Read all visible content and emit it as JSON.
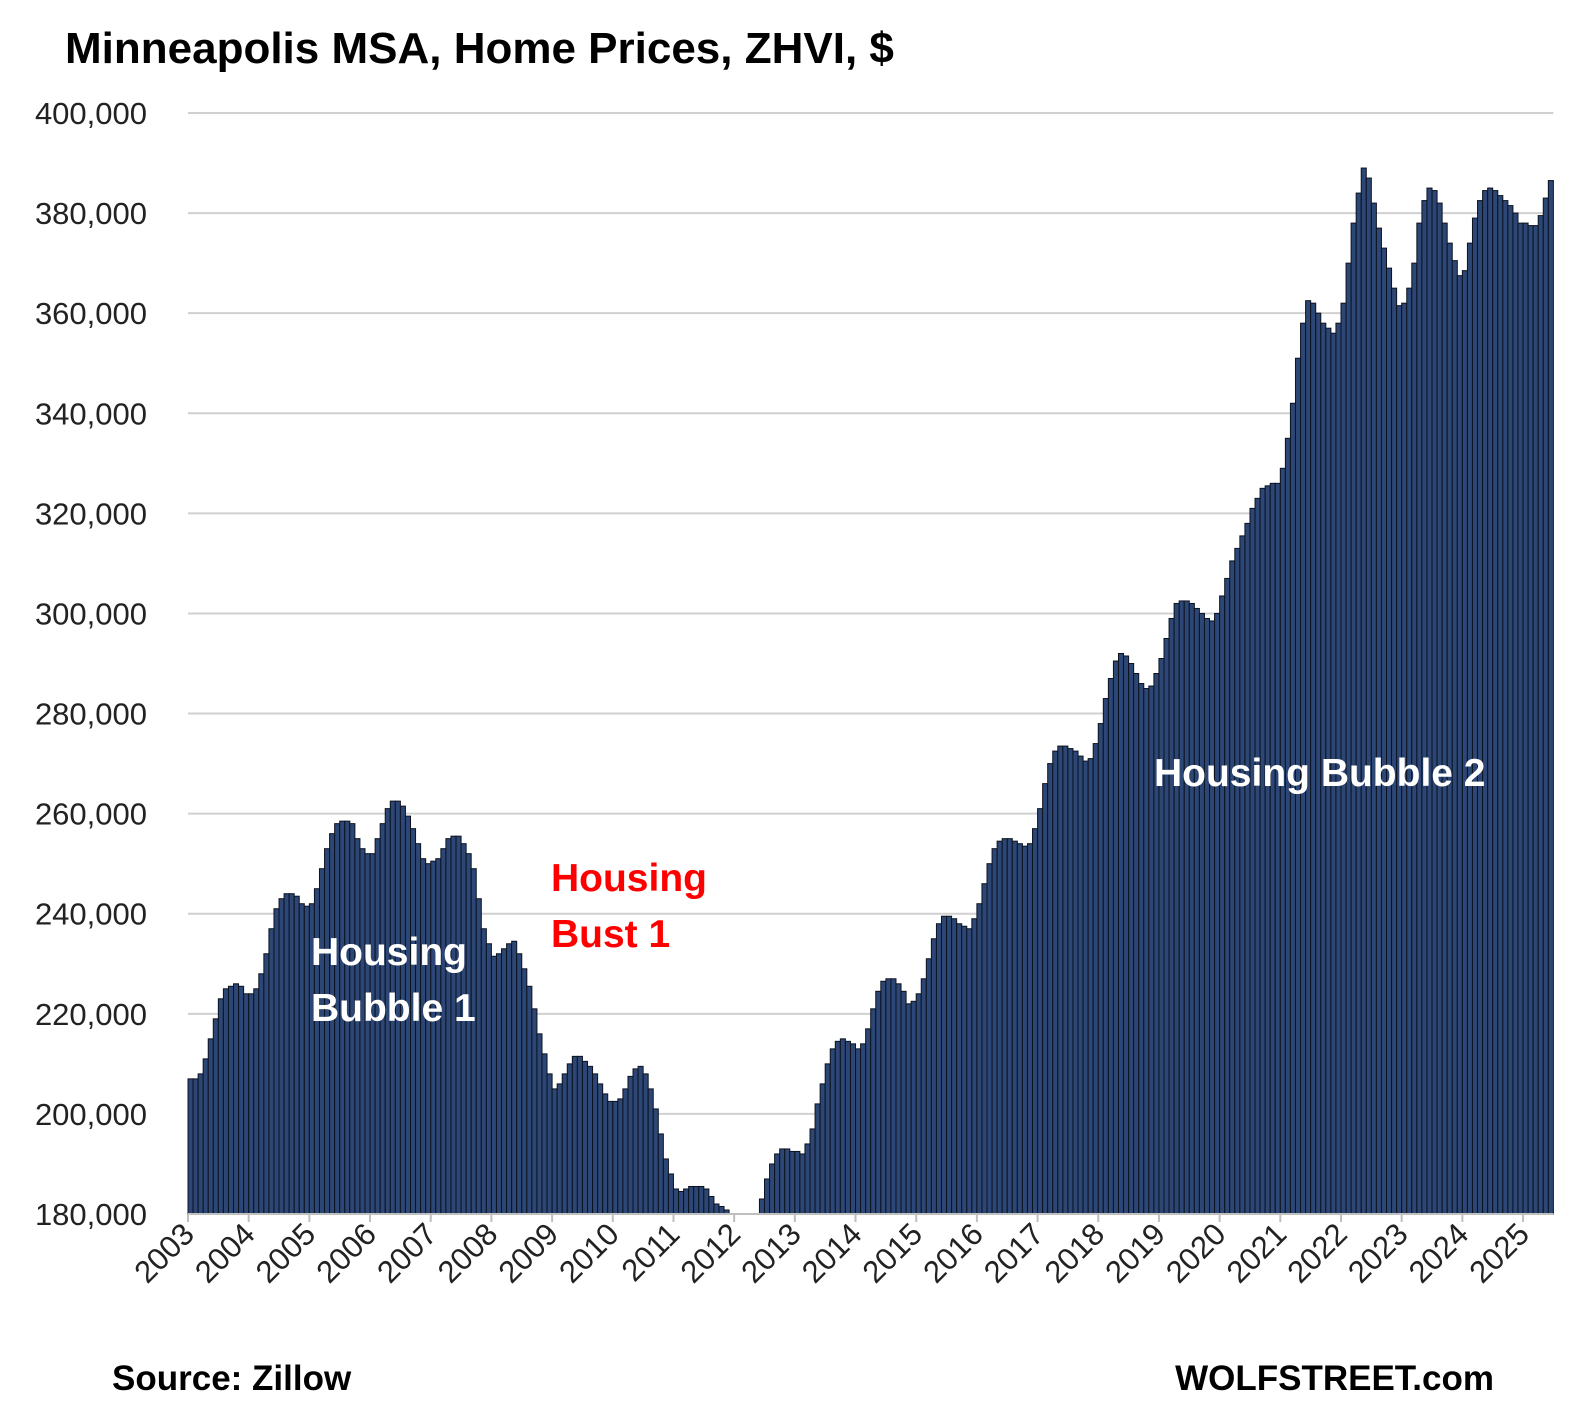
{
  "chart_data": {
    "type": "bar",
    "title": "Minneapolis  MSA, Home Prices, ZHVI, $",
    "source": "Source: Zillow",
    "credit": "WOLFSTREET.com",
    "annotations": [
      {
        "lines": [
          "Housing",
          "Bubble 1"
        ],
        "color": "#ffffff"
      },
      {
        "lines": [
          "Housing",
          "Bust 1"
        ],
        "color": "#ff0000"
      },
      {
        "lines": [
          "Housing Bubble 2"
        ],
        "color": "#ffffff"
      }
    ],
    "color": "#2c4675",
    "grid": true,
    "ylim": [
      180000,
      400000
    ],
    "yticks": [
      {
        "value": 180000,
        "label": "180,000"
      },
      {
        "value": 200000,
        "label": "200,000"
      },
      {
        "value": 220000,
        "label": "220,000"
      },
      {
        "value": 240000,
        "label": "240,000"
      },
      {
        "value": 260000,
        "label": "260,000"
      },
      {
        "value": 280000,
        "label": "280,000"
      },
      {
        "value": 300000,
        "label": "300,000"
      },
      {
        "value": 320000,
        "label": "320,000"
      },
      {
        "value": 340000,
        "label": "340,000"
      },
      {
        "value": 360000,
        "label": "360,000"
      },
      {
        "value": 380000,
        "label": "380,000"
      },
      {
        "value": 400000,
        "label": "400,000"
      }
    ],
    "categories": [
      "2003",
      null,
      null,
      null,
      null,
      null,
      null,
      null,
      null,
      null,
      null,
      null,
      "2004",
      null,
      null,
      null,
      null,
      null,
      null,
      null,
      null,
      null,
      null,
      null,
      "2005",
      null,
      null,
      null,
      null,
      null,
      null,
      null,
      null,
      null,
      null,
      null,
      "2006",
      null,
      null,
      null,
      null,
      null,
      null,
      null,
      null,
      null,
      null,
      null,
      "2007",
      null,
      null,
      null,
      null,
      null,
      null,
      null,
      null,
      null,
      null,
      null,
      "2008",
      null,
      null,
      null,
      null,
      null,
      null,
      null,
      null,
      null,
      null,
      null,
      "2009",
      null,
      null,
      null,
      null,
      null,
      null,
      null,
      null,
      null,
      null,
      null,
      "2010",
      null,
      null,
      null,
      null,
      null,
      null,
      null,
      null,
      null,
      null,
      null,
      "2011",
      null,
      null,
      null,
      null,
      null,
      null,
      null,
      null,
      null,
      null,
      null,
      "2012",
      null,
      null,
      null,
      null,
      null,
      null,
      null,
      null,
      null,
      null,
      null,
      "2013",
      null,
      null,
      null,
      null,
      null,
      null,
      null,
      null,
      null,
      null,
      null,
      "2014",
      null,
      null,
      null,
      null,
      null,
      null,
      null,
      null,
      null,
      null,
      null,
      "2015",
      null,
      null,
      null,
      null,
      null,
      null,
      null,
      null,
      null,
      null,
      null,
      "2016",
      null,
      null,
      null,
      null,
      null,
      null,
      null,
      null,
      null,
      null,
      null,
      "2017",
      null,
      null,
      null,
      null,
      null,
      null,
      null,
      null,
      null,
      null,
      null,
      "2018",
      null,
      null,
      null,
      null,
      null,
      null,
      null,
      null,
      null,
      null,
      null,
      "2019",
      null,
      null,
      null,
      null,
      null,
      null,
      null,
      null,
      null,
      null,
      null,
      "2020",
      null,
      null,
      null,
      null,
      null,
      null,
      null,
      null,
      null,
      null,
      null,
      "2021",
      null,
      null,
      null,
      null,
      null,
      null,
      null,
      null,
      null,
      null,
      null,
      "2022",
      null,
      null,
      null,
      null,
      null,
      null,
      null,
      null,
      null,
      null,
      null,
      "2023",
      null,
      null,
      null,
      null,
      null,
      null,
      null,
      null,
      null,
      null,
      null,
      "2024",
      null,
      null,
      null,
      null,
      null,
      null,
      null,
      null,
      null,
      null,
      null,
      "2025",
      null,
      null,
      null,
      null,
      null
    ],
    "values": [
      207000,
      207000,
      208000,
      211000,
      215000,
      219000,
      223000,
      225000,
      225500,
      226000,
      225500,
      224000,
      224000,
      225000,
      228000,
      232000,
      237000,
      241000,
      243000,
      244000,
      244000,
      243500,
      242000,
      241500,
      242000,
      245000,
      249000,
      253000,
      256000,
      258000,
      258500,
      258500,
      258000,
      255000,
      253000,
      252000,
      252000,
      255000,
      258000,
      261000,
      262500,
      262500,
      261500,
      259500,
      257000,
      254000,
      251000,
      250000,
      250500,
      251000,
      253000,
      255000,
      255500,
      255500,
      254000,
      252000,
      249000,
      243000,
      237000,
      234000,
      231500,
      232000,
      233000,
      234000,
      234500,
      232000,
      229000,
      225500,
      221000,
      216000,
      212000,
      208000,
      205000,
      206000,
      208000,
      210000,
      211500,
      211500,
      210500,
      209500,
      208000,
      206000,
      204000,
      202500,
      202500,
      203000,
      205000,
      207500,
      209000,
      209500,
      208000,
      205000,
      201000,
      196000,
      191000,
      188000,
      185000,
      184500,
      185000,
      185500,
      185500,
      185500,
      185000,
      183500,
      182000,
      181500,
      180800,
      179000,
      178000,
      177000,
      177000,
      178000,
      179500,
      183000,
      187000,
      190000,
      192000,
      193000,
      193000,
      192500,
      192500,
      192000,
      194000,
      197000,
      202000,
      206000,
      210000,
      213000,
      214500,
      215000,
      214500,
      214000,
      213000,
      214000,
      217000,
      221000,
      224500,
      226500,
      227000,
      227000,
      226000,
      224500,
      222000,
      222500,
      224000,
      227000,
      231000,
      235000,
      238000,
      239500,
      239500,
      239000,
      238000,
      237500,
      237000,
      239000,
      242000,
      246000,
      250000,
      253000,
      254500,
      255000,
      255000,
      254500,
      254000,
      253500,
      254000,
      257000,
      261000,
      266000,
      270000,
      272500,
      273500,
      273500,
      273000,
      272500,
      271500,
      270500,
      271000,
      274000,
      278000,
      283000,
      287000,
      290500,
      292000,
      291500,
      290000,
      288000,
      286000,
      285000,
      285500,
      288000,
      291000,
      295000,
      299000,
      302000,
      302500,
      302500,
      302000,
      301000,
      300000,
      299000,
      298500,
      300000,
      303500,
      307000,
      310500,
      313000,
      315500,
      318000,
      321000,
      323000,
      325000,
      325500,
      326000,
      326000,
      329000,
      335000,
      342000,
      351000,
      358000,
      362500,
      362000,
      360000,
      358000,
      357000,
      356000,
      358000,
      362000,
      370000,
      378000,
      384000,
      389000,
      387000,
      382000,
      377000,
      373000,
      369000,
      365000,
      361500,
      362000,
      365000,
      370000,
      378000,
      382500,
      385000,
      384500,
      382000,
      378000,
      374000,
      370500,
      367500,
      368500,
      374000,
      379000,
      382500,
      384500,
      385000,
      384500,
      383500,
      382500,
      381500,
      380000,
      378000,
      378000,
      377500,
      377500,
      379500,
      383000,
      386500
    ]
  }
}
